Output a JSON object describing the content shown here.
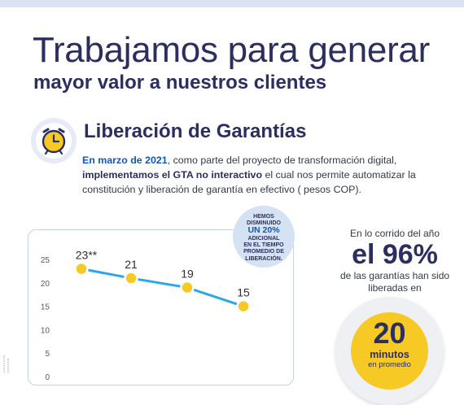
{
  "header": {
    "line1": "Trabajamos para generar",
    "line2": "mayor valor a nuestros clientes"
  },
  "section": {
    "title": "Liberación de Garantías",
    "desc_highlight": "En marzo de 2021",
    "desc_part1": ", como parte del proyecto de transformación digital,",
    "desc_bold": "implementamos el GTA no interactivo",
    "desc_part2": " el cual nos permite automatizar la constitución y liberación de garantía en efectivo ( pesos COP)."
  },
  "bubble": {
    "line1": "HEMOS\nDISMINUIDO",
    "line2": "UN 20%",
    "line3": "ADICIONAL\nEN EL TIEMPO\nPROMEDIO DE\nLIBERACIÓN."
  },
  "right": {
    "line1": "En lo corrido del año",
    "big": "el 96%",
    "line2": "de las garantías han sido liberadas en"
  },
  "minutes": {
    "number": "20",
    "word": "minutos",
    "sub": "en promedio"
  },
  "colors": {
    "line": "#2aa8e6",
    "point": "#f7c925",
    "text_dark": "#2c2f5d",
    "highlight_blue": "#1457b0"
  },
  "chart_data": {
    "type": "line",
    "y_ticks": [
      "25",
      "20",
      "15",
      "10",
      "5",
      "0"
    ],
    "ylim": [
      0,
      25
    ],
    "points": [
      {
        "x": 0,
        "y": 23,
        "label": "23**"
      },
      {
        "x": 1,
        "y": 21,
        "label": "21"
      },
      {
        "x": 2,
        "y": 19,
        "label": "19"
      },
      {
        "x": 3,
        "y": 15,
        "label": "15"
      }
    ],
    "grid": false
  }
}
